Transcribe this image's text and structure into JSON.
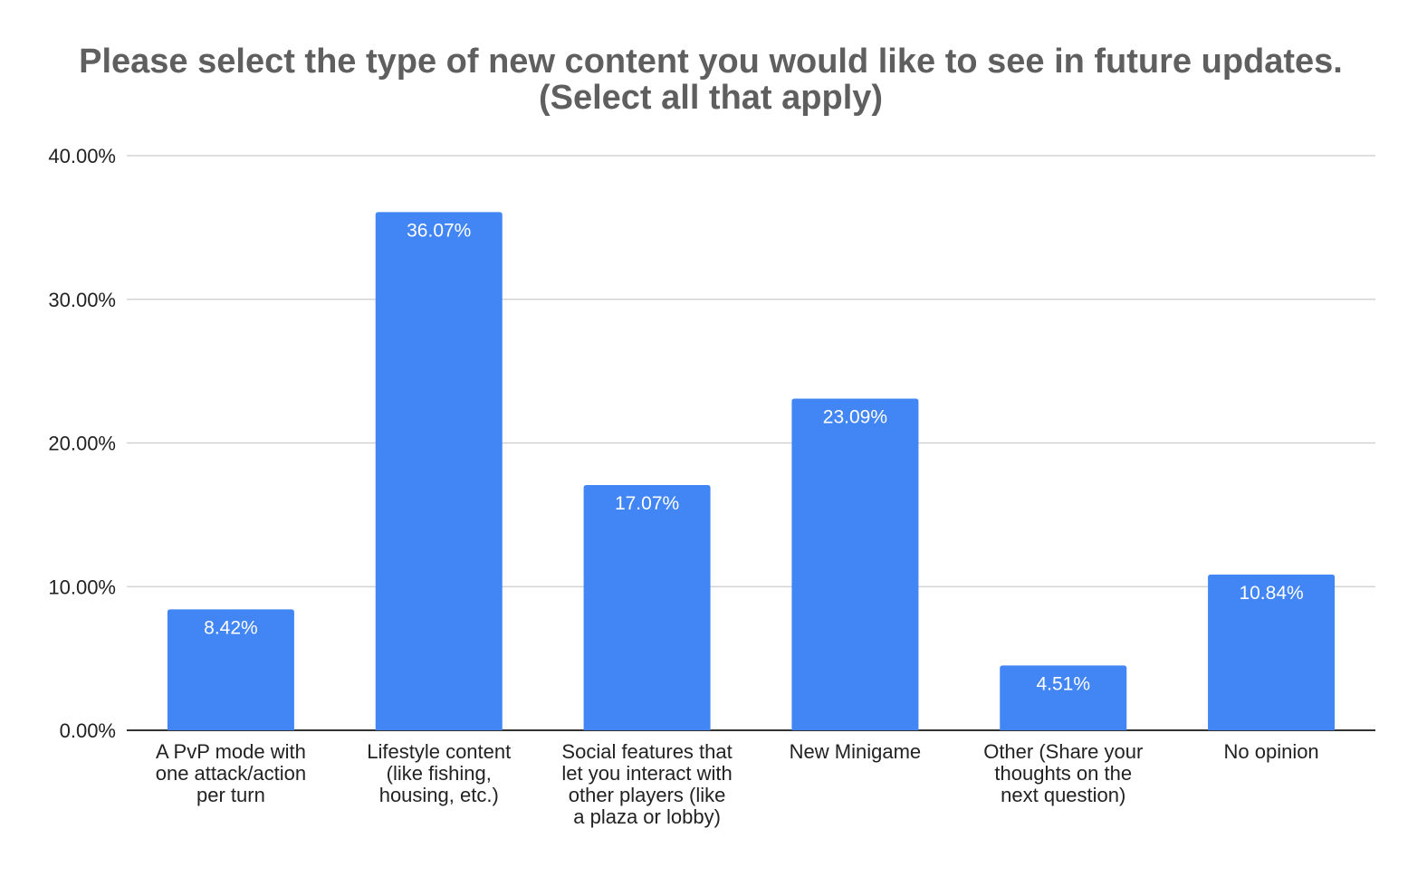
{
  "chart_data": {
    "type": "bar",
    "title_lines": [
      "Please select the type of new content you would like to see in future updates.",
      "(Select all that apply)"
    ],
    "categories": [
      [
        "A PvP mode with",
        "one attack/action",
        "per turn"
      ],
      [
        "Lifestyle content",
        "(like fishing,",
        "housing, etc.)"
      ],
      [
        "Social features that",
        "let you interact with",
        "other players (like",
        "a plaza or lobby)"
      ],
      [
        "New Minigame"
      ],
      [
        "Other (Share your",
        "thoughts on the",
        "next question)"
      ],
      [
        "No opinion"
      ]
    ],
    "values": [
      8.42,
      36.07,
      17.07,
      23.09,
      4.51,
      10.84
    ],
    "value_labels": [
      "8.42%",
      "36.07%",
      "17.07%",
      "23.09%",
      "4.51%",
      "10.84%"
    ],
    "y_ticks": [
      0,
      10,
      20,
      30,
      40
    ],
    "y_tick_labels": [
      "0.00%",
      "10.00%",
      "20.00%",
      "30.00%",
      "40.00%"
    ],
    "ylim": [
      0,
      40
    ],
    "xlabel": "",
    "ylabel": "",
    "grid": true,
    "legend": "none",
    "bar_color": "#4285f4",
    "title_color": "#5f5f5f"
  }
}
